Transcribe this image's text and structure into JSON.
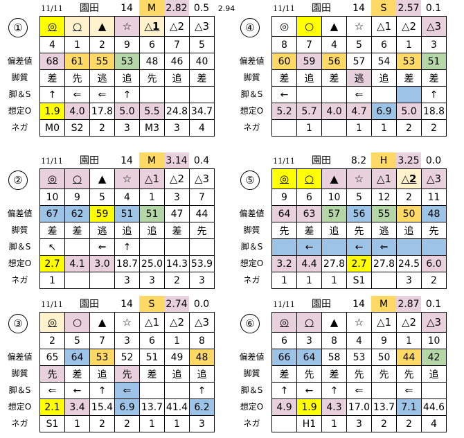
{
  "row_labels": [
    "偏差値",
    "脚質",
    "脚＆S",
    "想定O",
    "ネガ"
  ],
  "colors": {
    "Y": "#ffff00",
    "P": "#fff2cc",
    "K": "#e8d0dc",
    "O": "#ffd966",
    "G": "#b5d7a8",
    "B": "#9dc3e6"
  },
  "panels": [
    {
      "id": "①",
      "header": {
        "date": "11/11",
        "venue": "園田",
        "count": "14",
        "grade": "M",
        "value": "2.82",
        "diff": "0.5",
        "extra": "2.94"
      },
      "rows": [
        [
          [
            "◎",
            "Y",
            1
          ],
          [
            "○",
            "P",
            1
          ],
          [
            "▲",
            "P"
          ],
          [
            "☆",
            "K"
          ],
          [
            "△1",
            "P",
            1
          ],
          [
            "△2"
          ],
          [
            "△3"
          ]
        ],
        [
          [
            "4"
          ],
          [
            "1"
          ],
          [
            "2"
          ],
          [
            "9"
          ],
          [
            "6"
          ],
          [
            "7"
          ],
          [
            "5"
          ]
        ],
        [
          [
            "68",
            "K"
          ],
          [
            "61",
            "O"
          ],
          [
            "55",
            "O"
          ],
          [
            "53",
            "G"
          ],
          [
            "48"
          ],
          [
            "46"
          ],
          [
            "40"
          ]
        ],
        [
          [
            "差"
          ],
          [
            "先"
          ],
          [
            "逃"
          ],
          [
            "追"
          ],
          [
            "先"
          ],
          [
            "追"
          ],
          [
            "差"
          ]
        ],
        [
          [
            "↑"
          ],
          [
            "⇐"
          ],
          [
            "⇐"
          ],
          [
            "↑"
          ],
          [
            ""
          ],
          [
            ""
          ],
          [
            ""
          ]
        ],
        [
          [
            "1.9",
            "Y"
          ],
          [
            "4.0",
            "K"
          ],
          [
            "17.8"
          ],
          [
            "5.0",
            "K"
          ],
          [
            "5.5",
            "K"
          ],
          [
            "24.8"
          ],
          [
            "34.7"
          ]
        ],
        [
          [
            "M0"
          ],
          [
            "S2"
          ],
          [
            "2"
          ],
          [
            "3"
          ],
          [
            "M3"
          ],
          [
            "3"
          ],
          [
            "4"
          ]
        ]
      ]
    },
    {
      "id": "④",
      "header": {
        "date": "11/11",
        "venue": "園田",
        "count": "14",
        "grade": "S",
        "value": "2.57",
        "diff": "0.1"
      },
      "rows": [
        [
          [
            "◎"
          ],
          [
            "○",
            "Y"
          ],
          [
            "▲"
          ],
          [
            "☆"
          ],
          [
            "△1"
          ],
          [
            "△2"
          ],
          [
            "△3",
            "K"
          ]
        ],
        [
          [
            "8"
          ],
          [
            "7"
          ],
          [
            "4"
          ],
          [
            "5"
          ],
          [
            "6"
          ],
          [
            "1"
          ],
          [
            "3"
          ]
        ],
        [
          [
            "60",
            "O"
          ],
          [
            "59",
            "K"
          ],
          [
            "56",
            "O"
          ],
          [
            "57"
          ],
          [
            "54"
          ],
          [
            "53",
            "O"
          ],
          [
            "51",
            "G"
          ]
        ],
        [
          [
            "差"
          ],
          [
            "追"
          ],
          [
            "差"
          ],
          [
            "逃",
            "K"
          ],
          [
            "追"
          ],
          [
            "差"
          ],
          [
            "差"
          ]
        ],
        [
          [
            "←"
          ],
          [
            ""
          ],
          [
            ""
          ],
          [
            "⇐"
          ],
          [
            ""
          ],
          [
            "",
            "B"
          ],
          [
            "↑"
          ]
        ],
        [
          [
            "5.2",
            "K"
          ],
          [
            "5.7",
            "K"
          ],
          [
            "4.0",
            "K"
          ],
          [
            "4.7",
            "K"
          ],
          [
            "6.9",
            "B"
          ],
          [
            "5.0",
            "K"
          ],
          [
            "18.8"
          ]
        ],
        [
          [
            ""
          ],
          [
            "1"
          ],
          [
            ""
          ],
          [
            "1"
          ],
          [
            "1"
          ],
          [
            "2"
          ],
          [
            "2"
          ]
        ]
      ]
    },
    {
      "id": "②",
      "header": {
        "date": "11/11",
        "venue": "園田",
        "count": "14",
        "grade": "M",
        "value": "3.14",
        "diff": "0.4"
      },
      "rows": [
        [
          [
            "◎",
            "K",
            1
          ],
          [
            "○",
            "K",
            1
          ],
          [
            "▲"
          ],
          [
            "☆",
            "K"
          ],
          [
            "△1",
            "K"
          ],
          [
            "△2"
          ],
          [
            "△3"
          ]
        ],
        [
          [
            "10"
          ],
          [
            "9"
          ],
          [
            "5"
          ],
          [
            "4"
          ],
          [
            "1"
          ],
          [
            "3"
          ],
          [
            "7"
          ]
        ],
        [
          [
            "67",
            "B"
          ],
          [
            "62",
            "B"
          ],
          [
            "59",
            "Y"
          ],
          [
            "51",
            "B"
          ],
          [
            "51",
            "G"
          ],
          [
            "47"
          ],
          [
            "44"
          ]
        ],
        [
          [
            "差"
          ],
          [
            "差"
          ],
          [
            "逃"
          ],
          [
            "追"
          ],
          [
            "追"
          ],
          [
            "差"
          ],
          [
            "先"
          ]
        ],
        [
          [
            "↖"
          ],
          [
            ""
          ],
          [
            "⇐"
          ],
          [
            "↑"
          ],
          [
            ""
          ],
          [
            ""
          ],
          [
            ""
          ]
        ],
        [
          [
            "2.7",
            "Y"
          ],
          [
            "4.1",
            "K"
          ],
          [
            "3.0",
            "K"
          ],
          [
            "18.7"
          ],
          [
            "25.0"
          ],
          [
            "14.3"
          ],
          [
            "53.9"
          ]
        ],
        [
          [
            "1"
          ],
          [
            ""
          ],
          [
            ""
          ],
          [
            "3"
          ],
          [
            "3"
          ],
          [
            "2"
          ],
          [
            "3"
          ]
        ]
      ]
    },
    {
      "id": "⑤",
      "header": {
        "date": "11/11",
        "venue": "園田",
        "count": "8.2",
        "grade": "H",
        "value": "3.25",
        "diff": "0.0"
      },
      "rows": [
        [
          [
            "◎",
            "Y",
            1
          ],
          [
            "○",
            "Y",
            1
          ],
          [
            "▲",
            "K",
            1
          ],
          [
            "☆",
            "K"
          ],
          [
            "△1",
            "K"
          ],
          [
            "△2",
            "P",
            1
          ],
          [
            "△3",
            "K"
          ]
        ],
        [
          [
            "9"
          ],
          [
            "6"
          ],
          [
            "10"
          ],
          [
            "5"
          ],
          [
            "12"
          ],
          [
            "2"
          ],
          [
            "11"
          ]
        ],
        [
          [
            "64",
            "K"
          ],
          [
            "63",
            "K"
          ],
          [
            "57",
            "G"
          ],
          [
            "56",
            "B"
          ],
          [
            "55",
            "G"
          ],
          [
            "50",
            "O"
          ],
          [
            "48",
            "B"
          ]
        ],
        [
          [
            "先"
          ],
          [
            "差"
          ],
          [
            "追"
          ],
          [
            "先"
          ],
          [
            "逃"
          ],
          [
            "追"
          ],
          [
            "先"
          ]
        ],
        [
          [
            "",
            "B"
          ],
          [
            "←",
            "B"
          ],
          [
            "",
            "B"
          ],
          [
            "←",
            "B"
          ],
          [
            "⇐",
            "B"
          ],
          [
            "",
            "B"
          ],
          [
            "",
            "B"
          ]
        ],
        [
          [
            "3.2",
            "K"
          ],
          [
            "4.4",
            "K"
          ],
          [
            "27.8"
          ],
          [
            "2.7",
            "Y"
          ],
          [
            "27.8"
          ],
          [
            "24.5"
          ],
          [
            "6.0",
            "K"
          ]
        ],
        [
          [
            "1"
          ],
          [
            "1"
          ],
          [
            "1"
          ],
          [
            "S1"
          ],
          [
            ""
          ],
          [
            "3"
          ],
          [
            "2"
          ]
        ]
      ]
    },
    {
      "id": "③",
      "header": {
        "date": "11/11",
        "venue": "園田",
        "count": "14",
        "grade": "S",
        "value": "2.74",
        "diff": "0.0"
      },
      "rows": [
        [
          [
            "◎",
            "P",
            1
          ],
          [
            "○",
            "K"
          ],
          [
            "▲"
          ],
          [
            "☆"
          ],
          [
            "△1"
          ],
          [
            "△2"
          ],
          [
            "△3"
          ]
        ],
        [
          [
            "2"
          ],
          [
            "5"
          ],
          [
            "7"
          ],
          [
            "3"
          ],
          [
            "6"
          ],
          [
            "1"
          ],
          [
            "8"
          ]
        ],
        [
          [
            "65"
          ],
          [
            "64",
            "B"
          ],
          [
            "53",
            "O"
          ],
          [
            "52"
          ],
          [
            "51"
          ],
          [
            "49"
          ],
          [
            "48",
            "O"
          ]
        ],
        [
          [
            "先",
            "K"
          ],
          [
            "差"
          ],
          [
            "追"
          ],
          [
            "先",
            "K"
          ],
          [
            "差"
          ],
          [
            "追"
          ],
          [
            "追"
          ]
        ],
        [
          [
            "⇐"
          ],
          [
            "←"
          ],
          [
            "↑"
          ],
          [
            "⇐",
            "B"
          ],
          [
            ""
          ],
          [
            ""
          ],
          [
            "↑"
          ]
        ],
        [
          [
            "2.1",
            "Y"
          ],
          [
            "3.4",
            "K"
          ],
          [
            "15.4"
          ],
          [
            "6.9",
            "B"
          ],
          [
            "13.7"
          ],
          [
            "41.4"
          ],
          [
            "6.2",
            "B"
          ]
        ],
        [
          [
            "S1"
          ],
          [
            "1"
          ],
          [
            "2"
          ],
          [
            "2"
          ],
          [
            "1"
          ],
          [
            "1"
          ],
          [
            "3"
          ]
        ]
      ]
    },
    {
      "id": "⑥",
      "header": {
        "date": "11/11",
        "venue": "園田",
        "count": "14",
        "grade": "M",
        "value": "2.87",
        "diff": "0.1"
      },
      "rows": [
        [
          [
            "◎",
            "K",
            1
          ],
          [
            "○",
            "K",
            1
          ],
          [
            "▲"
          ],
          [
            "☆"
          ],
          [
            "△1"
          ],
          [
            "△2"
          ],
          [
            "△3",
            "K"
          ]
        ],
        [
          [
            "6"
          ],
          [
            "3"
          ],
          [
            "8"
          ],
          [
            "4"
          ],
          [
            "9"
          ],
          [
            "1"
          ],
          [
            "10"
          ]
        ],
        [
          [
            "66",
            "B"
          ],
          [
            "64",
            "B"
          ],
          [
            "58"
          ],
          [
            "53"
          ],
          [
            "50"
          ],
          [
            "44",
            "O"
          ],
          [
            "42",
            "G"
          ]
        ],
        [
          [
            "差"
          ],
          [
            "先"
          ],
          [
            "差"
          ],
          [
            "先"
          ],
          [
            "先"
          ],
          [
            "先"
          ],
          [
            "追"
          ]
        ],
        [
          [
            "↑"
          ],
          [
            "←"
          ],
          [
            "↑"
          ],
          [
            "⇐"
          ],
          [
            ""
          ],
          [
            "⇐"
          ],
          [
            ""
          ]
        ],
        [
          [
            "4.9",
            "K"
          ],
          [
            "1.9",
            "Y"
          ],
          [
            "4.3",
            "K"
          ],
          [
            "17.0"
          ],
          [
            "13.7"
          ],
          [
            "7.1",
            "B"
          ],
          [
            "44.6"
          ]
        ],
        [
          [
            ""
          ],
          [
            "H1"
          ],
          [
            "1"
          ],
          [
            "3"
          ],
          [
            "2"
          ],
          [
            "2"
          ],
          [
            "4"
          ]
        ]
      ]
    }
  ]
}
